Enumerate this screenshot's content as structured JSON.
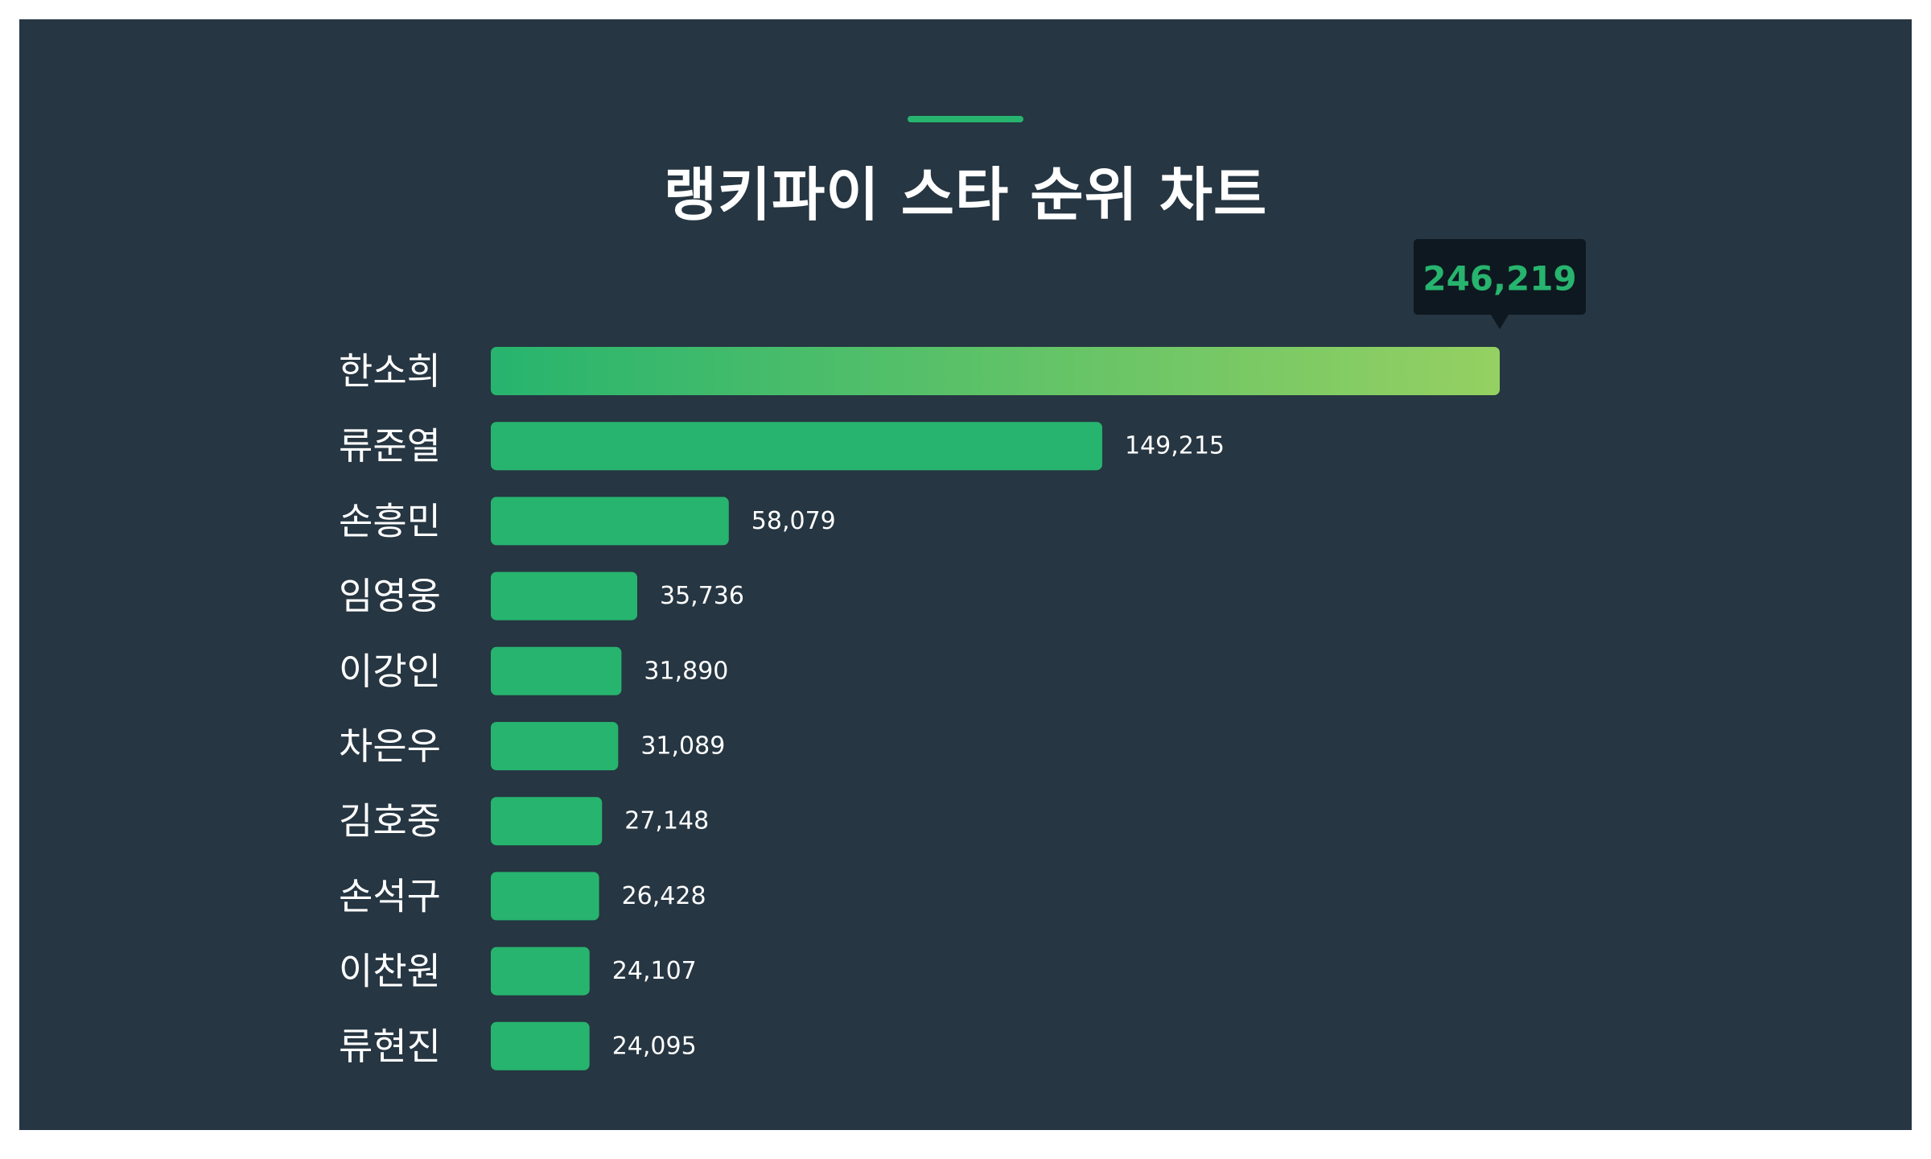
{
  "chart_data": {
    "type": "bar",
    "orientation": "horizontal",
    "title": "랭키파이 스타 순위 차트",
    "categories": [
      "한소희",
      "류준열",
      "손흥민",
      "임영웅",
      "이강인",
      "차은우",
      "김호중",
      "손석구",
      "이찬원",
      "류현진"
    ],
    "values": [
      246219,
      149215,
      58079,
      35736,
      31890,
      31089,
      27148,
      26428,
      24107,
      24095
    ],
    "value_labels": [
      "246,219",
      "149,215",
      "58,079",
      "35,736",
      "31,890",
      "31,089",
      "27,148",
      "26,428",
      "24,107",
      "24,095"
    ],
    "highlight": {
      "category": "한소희",
      "label": "246,219"
    },
    "xlim": [
      0,
      246219
    ],
    "grid": false,
    "legend": "none"
  },
  "colors": {
    "background": "#263642",
    "bar": "#27b46e",
    "highlight_gradient_start": "#27b46e",
    "highlight_gradient_end": "#95d062",
    "tooltip_background": "#0e1820",
    "accent": "#27b46e",
    "text": "#ffffff"
  }
}
